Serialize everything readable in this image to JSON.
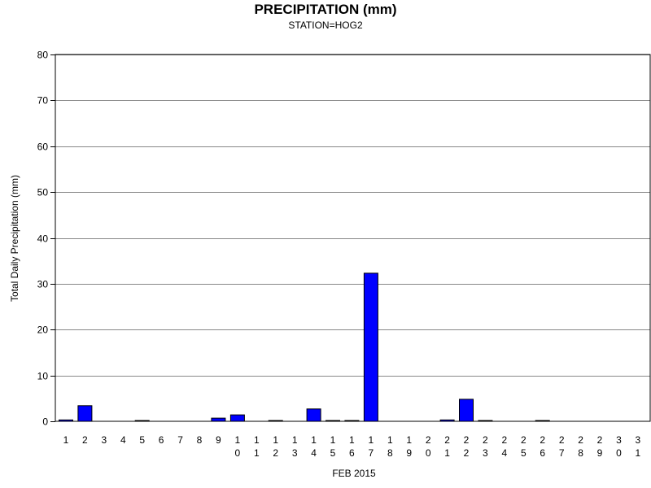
{
  "chart_data": {
    "type": "bar",
    "title": "PRECIPITATION (mm)",
    "subtitle": "STATION=HOG2",
    "xlabel": "FEB 2015",
    "ylabel": "Total Daily Precipitation (mm)",
    "ylim": [
      0,
      80
    ],
    "yticks": [
      0,
      10,
      20,
      30,
      40,
      50,
      60,
      70,
      80
    ],
    "grid": true,
    "categories": [
      "1",
      "2",
      "3",
      "4",
      "5",
      "6",
      "7",
      "8",
      "9",
      "10",
      "11",
      "12",
      "13",
      "14",
      "15",
      "16",
      "17",
      "18",
      "19",
      "20",
      "21",
      "22",
      "23",
      "24",
      "25",
      "26",
      "27",
      "28",
      "29",
      "30",
      "31"
    ],
    "values": [
      0.3,
      3.4,
      0,
      0,
      0.1,
      0,
      0,
      0,
      0.7,
      1.4,
      0,
      0.1,
      0,
      2.7,
      0.1,
      0.1,
      32.3,
      0,
      0,
      0,
      0.3,
      4.8,
      0.1,
      0,
      0,
      0.1,
      0,
      0,
      0,
      0,
      0
    ],
    "bar_color": "#0000ff",
    "grid_color": "#888888"
  }
}
